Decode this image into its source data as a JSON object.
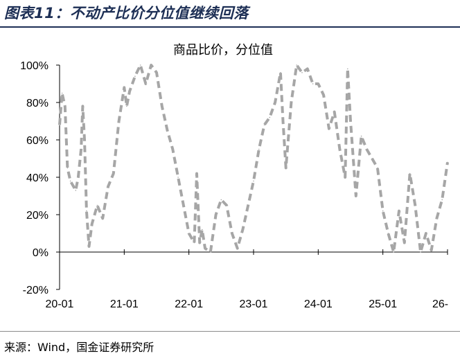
{
  "figure_title": "图表11：不动产比价分位值继续回落",
  "source_note": "来源：Wind，国金证券研究所",
  "chart_data": {
    "type": "line",
    "title": "商品比价，分位值",
    "y_unit": "%",
    "ylim": [
      -20,
      100
    ],
    "yticks": [
      -20,
      0,
      20,
      40,
      60,
      80,
      100
    ],
    "ytick_labels": [
      "-20%",
      "0%",
      "20%",
      "40%",
      "60%",
      "80%",
      "100%"
    ],
    "xlim": [
      "2020-01",
      "2026-01"
    ],
    "xticks": [
      "2020-01",
      "2021-01",
      "2022-01",
      "2023-01",
      "2024-01",
      "2025-01",
      "2026-01"
    ],
    "xtick_labels": [
      "20-01",
      "21-01",
      "22-01",
      "23-01",
      "24-01",
      "25-01",
      "26-"
    ],
    "grid": false,
    "legend": "none",
    "line_style": "dashed",
    "series": [
      {
        "color": "#a6a6a6",
        "points": [
          [
            "2020-01",
            68
          ],
          [
            "2020-01-15",
            85
          ],
          [
            "2020-02",
            78
          ],
          [
            "2020-02-15",
            45
          ],
          [
            "2020-03",
            38
          ],
          [
            "2020-04",
            33
          ],
          [
            "2020-04-15",
            40
          ],
          [
            "2020-05",
            55
          ],
          [
            "2020-05-10",
            78
          ],
          [
            "2020-05-20",
            60
          ],
          [
            "2020-06",
            22
          ],
          [
            "2020-06-15",
            3
          ],
          [
            "2020-07",
            15
          ],
          [
            "2020-08",
            25
          ],
          [
            "2020-09",
            18
          ],
          [
            "2020-10",
            35
          ],
          [
            "2020-11",
            42
          ],
          [
            "2020-12",
            70
          ],
          [
            "2021-01",
            88
          ],
          [
            "2021-01-15",
            78
          ],
          [
            "2021-02",
            86
          ],
          [
            "2021-03",
            94
          ],
          [
            "2021-04",
            100
          ],
          [
            "2021-05",
            90
          ],
          [
            "2021-06",
            100
          ],
          [
            "2021-07",
            96
          ],
          [
            "2021-08",
            78
          ],
          [
            "2021-09",
            65
          ],
          [
            "2021-10",
            55
          ],
          [
            "2021-11",
            40
          ],
          [
            "2021-12",
            25
          ],
          [
            "2022-01",
            10
          ],
          [
            "2022-02",
            5
          ],
          [
            "2022-02-15",
            42
          ],
          [
            "2022-03",
            5
          ],
          [
            "2022-03-15",
            12
          ],
          [
            "2022-04",
            2
          ],
          [
            "2022-05",
            0
          ],
          [
            "2022-06",
            20
          ],
          [
            "2022-07",
            28
          ],
          [
            "2022-08",
            25
          ],
          [
            "2022-09",
            10
          ],
          [
            "2022-10",
            2
          ],
          [
            "2022-11",
            12
          ],
          [
            "2022-12",
            25
          ],
          [
            "2023-01",
            38
          ],
          [
            "2023-02",
            55
          ],
          [
            "2023-03",
            68
          ],
          [
            "2023-04",
            72
          ],
          [
            "2023-05",
            80
          ],
          [
            "2023-06",
            96
          ],
          [
            "2023-06-15",
            70
          ],
          [
            "2023-07",
            45
          ],
          [
            "2023-08",
            80
          ],
          [
            "2023-09",
            100
          ],
          [
            "2023-10",
            96
          ],
          [
            "2023-11",
            98
          ],
          [
            "2023-12",
            90
          ],
          [
            "2024-01",
            90
          ],
          [
            "2024-02",
            84
          ],
          [
            "2024-03",
            66
          ],
          [
            "2024-04",
            75
          ],
          [
            "2024-05",
            55
          ],
          [
            "2024-06",
            40
          ],
          [
            "2024-06-15",
            98
          ],
          [
            "2024-07",
            70
          ],
          [
            "2024-08",
            30
          ],
          [
            "2024-09",
            62
          ],
          [
            "2024-10",
            55
          ],
          [
            "2024-11",
            50
          ],
          [
            "2024-12",
            45
          ],
          [
            "2025-01",
            22
          ],
          [
            "2025-02",
            10
          ],
          [
            "2025-03",
            0
          ],
          [
            "2025-04",
            22
          ],
          [
            "2025-05",
            5
          ],
          [
            "2025-06",
            42
          ],
          [
            "2025-07",
            25
          ],
          [
            "2025-08",
            0
          ],
          [
            "2025-09",
            10
          ],
          [
            "2025-10",
            1
          ],
          [
            "2025-11",
            18
          ],
          [
            "2025-12",
            28
          ],
          [
            "2026-01",
            48
          ]
        ]
      }
    ]
  }
}
